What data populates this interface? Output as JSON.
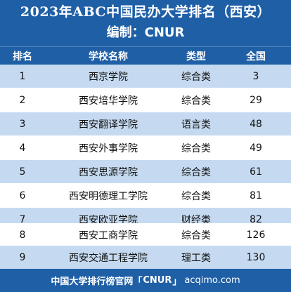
{
  "header": {
    "title": "2023年ABC中国民办大学排名（西安）",
    "subtitle": "编制：CNUR"
  },
  "table": {
    "columns": [
      "排名",
      "学校名称",
      "类型",
      "全国"
    ],
    "rows": [
      {
        "rank": "1",
        "name": "西京学院",
        "type": "综合类",
        "national": "3"
      },
      {
        "rank": "2",
        "name": "西安培华学院",
        "type": "综合类",
        "national": "29"
      },
      {
        "rank": "3",
        "name": "西安翻译学院",
        "type": "语言类",
        "national": "48"
      },
      {
        "rank": "4",
        "name": "西安外事学院",
        "type": "综合类",
        "national": "49"
      },
      {
        "rank": "5",
        "name": "西安思源学院",
        "type": "综合类",
        "national": "61"
      },
      {
        "rank": "6",
        "name": "西安明德理工学院",
        "type": "综合类",
        "national": "81"
      },
      {
        "rank": "7",
        "name": "西安欧亚学院",
        "type": "财经类",
        "national": "82"
      },
      {
        "rank": "8",
        "name": "西安工商学院",
        "type": "综合类",
        "national": "126"
      },
      {
        "rank": "9",
        "name": "西安交通工程学院",
        "type": "理工类",
        "national": "130"
      }
    ]
  },
  "footer": {
    "text_prefix": "中国大学排行榜官网「",
    "brand": "CNUR",
    "text_suffix": "」",
    "domain": "acqimo.com"
  },
  "colors": {
    "header_bg": "#1f5fa6",
    "row_alt_bg": "#c5daf0",
    "row_bg": "#ffffff"
  }
}
